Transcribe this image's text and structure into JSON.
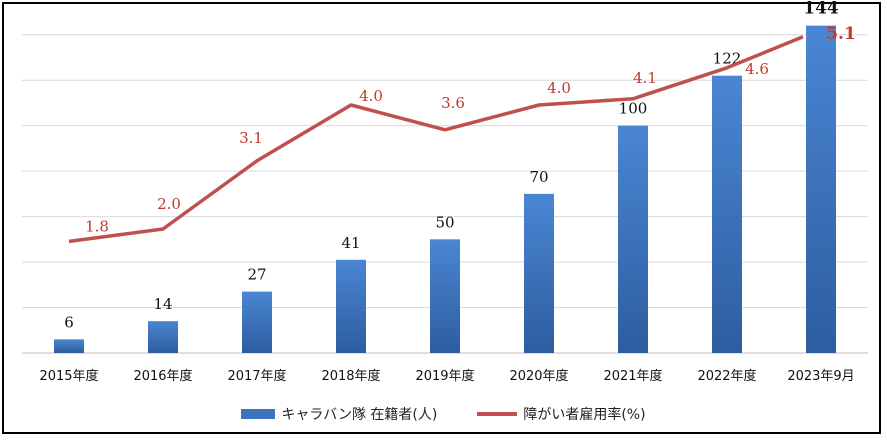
{
  "chart_data": {
    "type": "bar",
    "categories": [
      "2015年度",
      "2016年度",
      "2017年度",
      "2018年度",
      "2019年度",
      "2020年度",
      "2021年度",
      "2022年度",
      "2023年9月"
    ],
    "series": [
      {
        "name": "キャラバン隊 在籍者(人)",
        "type": "bar",
        "axis": "left",
        "values": [
          6,
          14,
          27,
          41,
          50,
          70,
          100,
          122,
          144
        ],
        "labels": [
          "6",
          "14",
          "27",
          "41",
          "50",
          "70",
          "100",
          "122",
          "144"
        ],
        "color": "#3b73bd"
      },
      {
        "name": "障がい者雇用率(%)",
        "type": "line",
        "axis": "right",
        "values": [
          1.8,
          2.0,
          3.1,
          4.0,
          3.6,
          4.0,
          4.1,
          4.6,
          5.1
        ],
        "labels": [
          "1.8",
          "2.0",
          "3.1",
          "4.0",
          "3.6",
          "4.0",
          "4.1",
          "4.6",
          "5.1"
        ],
        "color": "#c0504d"
      }
    ],
    "ylim": [
      0,
      150
    ],
    "y2lim": [
      0,
      5.5
    ],
    "grid": true,
    "legend": "bottom"
  }
}
